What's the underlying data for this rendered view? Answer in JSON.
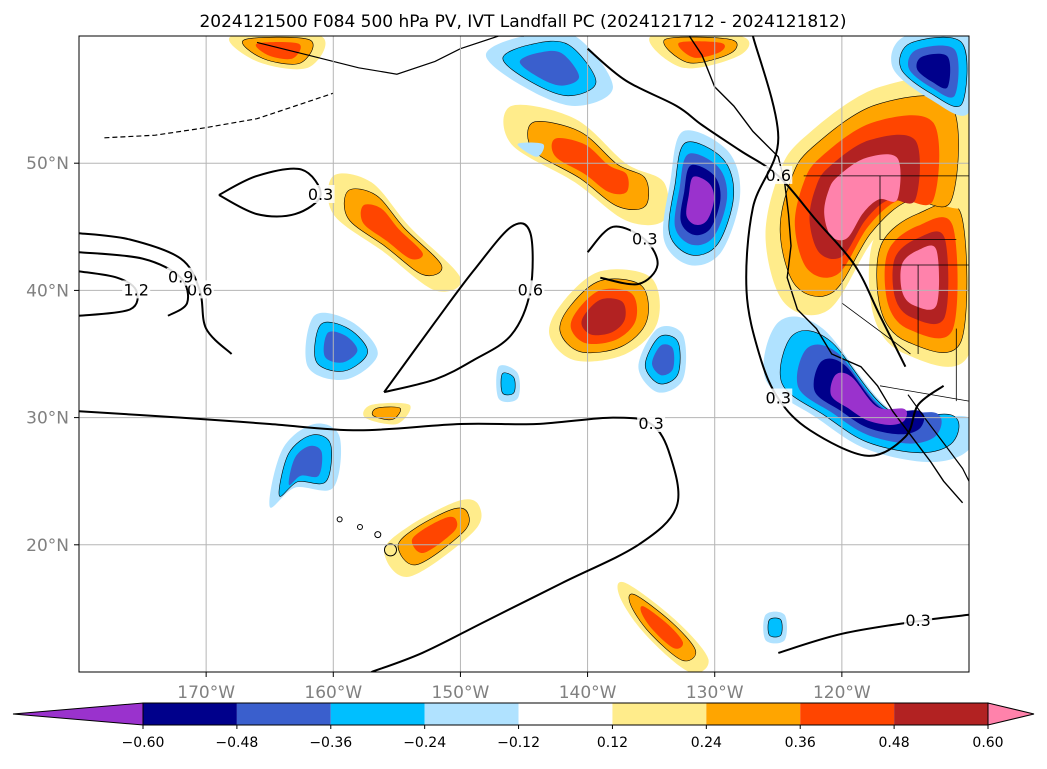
{
  "chart_data": {
    "type": "heatmap",
    "title": "2024121500 F084 500 hPa PV, IVT Landfall PC (2024121712 - 2024121812)",
    "map": {
      "lon_range": [
        -180,
        -110
      ],
      "lat_range": [
        10,
        60
      ],
      "projection": "equirectangular",
      "grid": true,
      "coastlines": true,
      "borders": true
    },
    "x_ticks": [
      {
        "lon": -170,
        "label": "170°W"
      },
      {
        "lon": -160,
        "label": "160°W"
      },
      {
        "lon": -150,
        "label": "150°W"
      },
      {
        "lon": -140,
        "label": "140°W"
      },
      {
        "lon": -130,
        "label": "130°W"
      },
      {
        "lon": -120,
        "label": "120°W"
      }
    ],
    "y_ticks": [
      {
        "lat": 50,
        "label": "50°N"
      },
      {
        "lat": 40,
        "label": "40°N"
      },
      {
        "lat": 30,
        "label": "30°N"
      },
      {
        "lat": 20,
        "label": "20°N"
      }
    ],
    "colorbar": {
      "levels": [
        -0.6,
        -0.48,
        -0.36,
        -0.24,
        -0.12,
        0.12,
        0.24,
        0.36,
        0.48,
        0.6
      ],
      "tick_labels": [
        "−0.60",
        "−0.48",
        "−0.36",
        "−0.24",
        "−0.12",
        "0.12",
        "0.24",
        "0.36",
        "0.48",
        "0.60"
      ],
      "colors": [
        "#9a32cd",
        "#00008b",
        "#3a5fcd",
        "#00bfff",
        "#b0e2ff",
        "#ffffff",
        "#ffec8b",
        "#ffa500",
        "#ff4500",
        "#b22222",
        "#ff82ab"
      ],
      "extend": "both"
    },
    "shaded_regions": [
      {
        "polarity": "positive",
        "max_level": 0.36,
        "points": [
          [
            -146,
            54.5
          ],
          [
            -141,
            53.5
          ],
          [
            -137,
            50
          ],
          [
            -134,
            48.5
          ],
          [
            -134,
            45.5
          ],
          [
            -137,
            45.5
          ],
          [
            -141,
            48.5
          ],
          [
            -146,
            51.5
          ]
        ]
      },
      {
        "polarity": "positive",
        "max_level": 0.48,
        "points": [
          [
            -142,
            39
          ],
          [
            -139,
            41.5
          ],
          [
            -135,
            41
          ],
          [
            -134.5,
            37.5
          ],
          [
            -137,
            35
          ],
          [
            -141,
            34.5
          ],
          [
            -143,
            36.5
          ]
        ]
      },
      {
        "polarity": "positive",
        "max_level": 0.36,
        "points": [
          [
            -160,
            49
          ],
          [
            -157,
            48.5
          ],
          [
            -154,
            45
          ],
          [
            -150,
            41
          ],
          [
            -152,
            40
          ],
          [
            -156,
            43
          ],
          [
            -160,
            46
          ]
        ]
      },
      {
        "polarity": "positive",
        "max_level": 0.6,
        "points": [
          [
            -114,
            47
          ],
          [
            -110,
            47
          ],
          [
            -110,
            35
          ],
          [
            -115,
            35
          ],
          [
            -117.5,
            38
          ],
          [
            -117.5,
            44
          ]
        ]
      },
      {
        "polarity": "positive",
        "max_level": 0.6,
        "points": [
          [
            -123,
            52
          ],
          [
            -117,
            56
          ],
          [
            -110,
            56
          ],
          [
            -110,
            47
          ],
          [
            -114,
            47
          ],
          [
            -117.5,
            44
          ],
          [
            -121,
            38.5
          ],
          [
            -124.5,
            39
          ],
          [
            -126,
            44
          ],
          [
            -125,
            49
          ]
        ]
      },
      {
        "polarity": "positive",
        "max_level": 0.36,
        "points": [
          [
            -150,
            23.5
          ],
          [
            -148.5,
            23
          ],
          [
            -149,
            21
          ],
          [
            -154,
            17.5
          ],
          [
            -156,
            19.5
          ],
          [
            -154,
            21.5
          ]
        ]
      },
      {
        "polarity": "positive",
        "max_level": 0.36,
        "points": [
          [
            -137,
            17
          ],
          [
            -133,
            14
          ],
          [
            -130.5,
            11
          ],
          [
            -132,
            10
          ],
          [
            -135.5,
            13
          ],
          [
            -137.5,
            16
          ]
        ]
      },
      {
        "polarity": "positive",
        "max_level": 0.36,
        "points": [
          [
            -168,
            60
          ],
          [
            -161,
            60
          ],
          [
            -162,
            57.5
          ],
          [
            -166,
            58
          ]
        ]
      },
      {
        "polarity": "positive",
        "max_level": 0.36,
        "points": [
          [
            -135,
            60
          ],
          [
            -128,
            60
          ],
          [
            -128,
            58.5
          ],
          [
            -132.5,
            57.5
          ]
        ]
      },
      {
        "polarity": "positive",
        "max_level": 0.24,
        "points": [
          [
            -157,
            31
          ],
          [
            -154,
            31
          ],
          [
            -155,
            29.5
          ],
          [
            -157.5,
            30
          ]
        ]
      },
      {
        "polarity": "negative",
        "max_level": 0.6,
        "points": [
          [
            -132.5,
            52.5
          ],
          [
            -129,
            51
          ],
          [
            -128,
            47.5
          ],
          [
            -129.5,
            43
          ],
          [
            -132,
            42
          ],
          [
            -134,
            44
          ],
          [
            -133.5,
            48.5
          ]
        ]
      },
      {
        "polarity": "negative",
        "max_level": 0.6,
        "points": [
          [
            -125,
            37.5
          ],
          [
            -121.5,
            37
          ],
          [
            -116,
            30.5
          ],
          [
            -110,
            30
          ],
          [
            -110,
            27.5
          ],
          [
            -113,
            26.5
          ],
          [
            -118,
            27.5
          ],
          [
            -122,
            30
          ],
          [
            -126,
            33
          ]
        ]
      },
      {
        "polarity": "negative",
        "max_level": 0.36,
        "points": [
          [
            -163,
            24.5
          ],
          [
            -160,
            24.5
          ],
          [
            -159.5,
            28.5
          ],
          [
            -161.5,
            29.5
          ],
          [
            -164,
            27.5
          ],
          [
            -165,
            23
          ]
        ]
      },
      {
        "polarity": "negative",
        "max_level": 0.36,
        "points": [
          [
            -161.5,
            38
          ],
          [
            -158.5,
            37.5
          ],
          [
            -156.5,
            35
          ],
          [
            -159,
            33
          ],
          [
            -162,
            34
          ]
        ]
      },
      {
        "polarity": "negative",
        "max_level": 0.36,
        "points": [
          [
            -148,
            58.5
          ],
          [
            -145,
            60
          ],
          [
            -141,
            60
          ],
          [
            -138,
            56
          ],
          [
            -141,
            54.5
          ],
          [
            -145,
            56
          ]
        ]
      },
      {
        "polarity": "negative",
        "max_level": 0.48,
        "points": [
          [
            -115,
            60
          ],
          [
            -110,
            60
          ],
          [
            -110,
            54
          ],
          [
            -113,
            55
          ],
          [
            -116,
            57.5
          ]
        ]
      },
      {
        "polarity": "negative",
        "max_level": 0.36,
        "points": [
          [
            -134.5,
            37
          ],
          [
            -132.5,
            36.5
          ],
          [
            -132.5,
            33
          ],
          [
            -134.5,
            32
          ],
          [
            -136,
            34
          ]
        ]
      },
      {
        "polarity": "negative",
        "max_level": 0.24,
        "points": [
          [
            -147,
            34
          ],
          [
            -145.5,
            33.5
          ],
          [
            -145.5,
            31.5
          ],
          [
            -147,
            31.5
          ]
        ]
      },
      {
        "polarity": "negative",
        "max_level": 0.24,
        "points": [
          [
            -126,
            14.5
          ],
          [
            -124.5,
            14.5
          ],
          [
            -124.5,
            12.5
          ],
          [
            -126,
            12.5
          ]
        ]
      },
      {
        "polarity": "negative",
        "max_level": 0.12,
        "points": [
          [
            -145.5,
            51.5
          ],
          [
            -143.5,
            51.5
          ],
          [
            -144,
            50.5
          ]
        ]
      }
    ],
    "contours": [
      {
        "level": 0.3,
        "label": "0.3",
        "points": [
          [
            -180,
            30.5
          ],
          [
            -172,
            30
          ],
          [
            -165,
            29.5
          ],
          [
            -158,
            29
          ],
          [
            -150,
            29.5
          ],
          [
            -144,
            29.5
          ],
          [
            -138,
            30
          ],
          [
            -135,
            29.5
          ],
          [
            -133.5,
            27
          ],
          [
            -133,
            23
          ],
          [
            -136,
            20
          ],
          [
            -142,
            17
          ],
          [
            -148,
            14
          ],
          [
            -153,
            11.5
          ],
          [
            -157,
            10
          ]
        ]
      },
      {
        "level": 0.6,
        "label": "0.6",
        "points": [
          [
            -180,
            44.5
          ],
          [
            -176,
            44
          ],
          [
            -172,
            42.5
          ],
          [
            -170.5,
            40
          ],
          [
            -170,
            37
          ],
          [
            -168,
            35
          ]
        ]
      },
      {
        "level": 0.9,
        "label": "0.9",
        "points": [
          [
            -180,
            43
          ],
          [
            -175,
            42.5
          ],
          [
            -172,
            41
          ],
          [
            -171.5,
            39
          ],
          [
            -173,
            38
          ]
        ]
      },
      {
        "level": 1.2,
        "label": "1.2",
        "points": [
          [
            -180,
            41.5
          ],
          [
            -177,
            41
          ],
          [
            -175.5,
            40
          ],
          [
            -176,
            38.5
          ],
          [
            -180,
            38
          ]
        ]
      },
      {
        "level": 0.3,
        "label": "0.3",
        "points": [
          [
            -169,
            47.5
          ],
          [
            -166,
            49
          ],
          [
            -162.5,
            49.5
          ],
          [
            -161,
            47.5
          ],
          [
            -163,
            46
          ],
          [
            -166,
            46
          ],
          [
            -169,
            47.5
          ]
        ]
      },
      {
        "level": 0.6,
        "label": "0.6",
        "points": [
          [
            -156,
            32
          ],
          [
            -152,
            37.5
          ],
          [
            -149,
            41.5
          ],
          [
            -146,
            45
          ],
          [
            -144.5,
            44.5
          ],
          [
            -144.5,
            40
          ],
          [
            -146,
            36.5
          ],
          [
            -149,
            34.5
          ],
          [
            -152,
            33
          ],
          [
            -156,
            32
          ]
        ]
      },
      {
        "level": 0.3,
        "label": "0.3",
        "points": [
          [
            -139,
            41
          ],
          [
            -136,
            40.5
          ],
          [
            -134.5,
            42
          ],
          [
            -135.5,
            44
          ],
          [
            -138,
            45
          ],
          [
            -140,
            43
          ]
        ]
      },
      {
        "level": 0.6,
        "label": "0.6",
        "points": [
          [
            -140,
            59
          ],
          [
            -137,
            56.5
          ],
          [
            -133,
            54.5
          ],
          [
            -131,
            53
          ],
          [
            -128,
            51
          ],
          [
            -125,
            49
          ],
          [
            -122,
            45.5
          ],
          [
            -119,
            42
          ],
          [
            -117,
            38
          ],
          [
            -115,
            34
          ]
        ]
      },
      {
        "level": 0.3,
        "label": "0.3",
        "points": [
          [
            -127,
            60
          ],
          [
            -125,
            52
          ],
          [
            -127,
            46.5
          ],
          [
            -127.5,
            40
          ],
          [
            -126.5,
            35
          ],
          [
            -125,
            31.5
          ],
          [
            -122.5,
            29
          ],
          [
            -118,
            27
          ],
          [
            -115,
            28.5
          ],
          [
            -114,
            31
          ],
          [
            -112,
            32.5
          ]
        ]
      },
      {
        "level": 0.3,
        "label": "0.3",
        "points": [
          [
            -125,
            11.5
          ],
          [
            -120,
            13
          ],
          [
            -114,
            14
          ],
          [
            -110,
            14.5
          ]
        ]
      }
    ]
  }
}
